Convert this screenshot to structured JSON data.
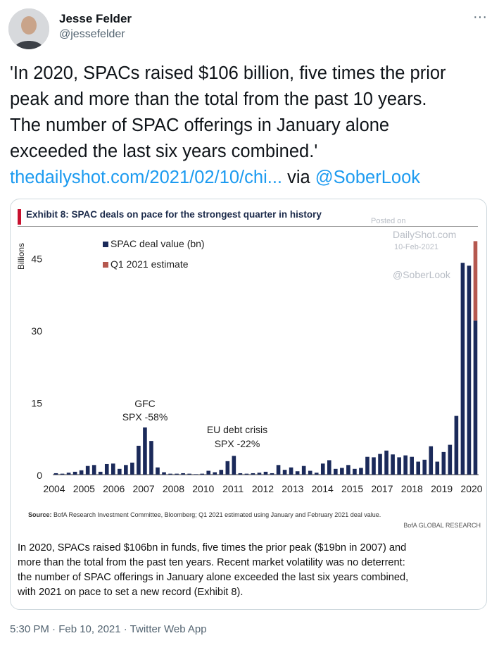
{
  "tweet": {
    "author_name": "Jesse Felder",
    "author_handle": "@jessefelder",
    "more_icon": "···",
    "text_lines": [
      "'In 2020, SPACs raised $106 billion, five times the prior",
      "peak and more than the total from the past 10 years.",
      "The number of SPAC offerings in January alone",
      "exceeded the last six years combined.'"
    ],
    "link_text": "thedailyshot.com/2021/02/10/chi...",
    "via_text": " via ",
    "mention": "@SoberLook",
    "footer": "5:30 PM · Feb 10, 2021 · Twitter Web App"
  },
  "card": {
    "exhibit_title": "Exhibit 8: SPAC deals on pace for the strongest quarter in history",
    "watermark": {
      "posted_on": "Posted on",
      "site": "DailyShot.com",
      "date": "10-Feb-2021",
      "handle": "@SoberLook"
    },
    "source_label": "Source:",
    "source_text": " BofA Research Investment Committee, Bloomberg; Q1 2021 estimated using January and February 2021 deal value.",
    "bofa": "BofA GLOBAL RESEARCH",
    "description_lines": [
      "In 2020, SPACs raised $106bn in funds, five times the prior peak ($19bn in 2007) and",
      "more than the total from the past ten years. Recent market volatility was no deterrent:",
      "the number of SPAC offerings in January alone exceeded the last six years combined,",
      "with 2021 on pace to set a new record (Exhibit 8)."
    ]
  },
  "chart_data": {
    "type": "bar",
    "ylabel": "Billions",
    "ylim": [
      0,
      49
    ],
    "yticks": [
      0,
      15,
      30,
      45
    ],
    "x_tick_labels": [
      "2004",
      "2005",
      "2006",
      "2007",
      "2008",
      "2010",
      "2011",
      "2012",
      "2013",
      "2014",
      "2015",
      "2017",
      "2018",
      "2019",
      "2020"
    ],
    "annotations": [
      {
        "lines": [
          "GFC",
          "SPX -58%"
        ]
      },
      {
        "lines": [
          "EU debt crisis",
          "SPX -22%"
        ]
      }
    ],
    "colors": {
      "deal": "#1b2a5a",
      "estimate": "#b5584f"
    },
    "series": [
      {
        "name": "SPAC deal value (bn)",
        "values": [
          0.3,
          0.2,
          0.4,
          0.6,
          0.9,
          1.8,
          2.0,
          0.6,
          2.2,
          2.3,
          1.2,
          2.0,
          2.5,
          6.0,
          9.8,
          7.0,
          1.5,
          0.5,
          0.2,
          0.2,
          0.3,
          0.2,
          0.1,
          0.2,
          0.8,
          0.5,
          1.0,
          2.8,
          3.9,
          0.3,
          0.2,
          0.3,
          0.4,
          0.6,
          0.3,
          2.0,
          1.0,
          1.5,
          0.7,
          1.8,
          0.8,
          0.4,
          2.3,
          3.0,
          1.2,
          1.4,
          2.0,
          1.2,
          1.4,
          3.7,
          3.6,
          4.3,
          5.0,
          4.2,
          3.6,
          4.0,
          3.7,
          2.7,
          3.1,
          5.9,
          2.7,
          4.7,
          6.2,
          12.2,
          44.0,
          43.4,
          32.0
        ]
      },
      {
        "name": "Q1 2021 estimate",
        "values": [
          0,
          0,
          0,
          0,
          0,
          0,
          0,
          0,
          0,
          0,
          0,
          0,
          0,
          0,
          0,
          0,
          0,
          0,
          0,
          0,
          0,
          0,
          0,
          0,
          0,
          0,
          0,
          0,
          0,
          0,
          0,
          0,
          0,
          0,
          0,
          0,
          0,
          0,
          0,
          0,
          0,
          0,
          0,
          0,
          0,
          0,
          0,
          0,
          0,
          0,
          0,
          0,
          0,
          0,
          0,
          0,
          0,
          0,
          0,
          0,
          0,
          0,
          0,
          0,
          0,
          0,
          16.5
        ]
      }
    ]
  }
}
